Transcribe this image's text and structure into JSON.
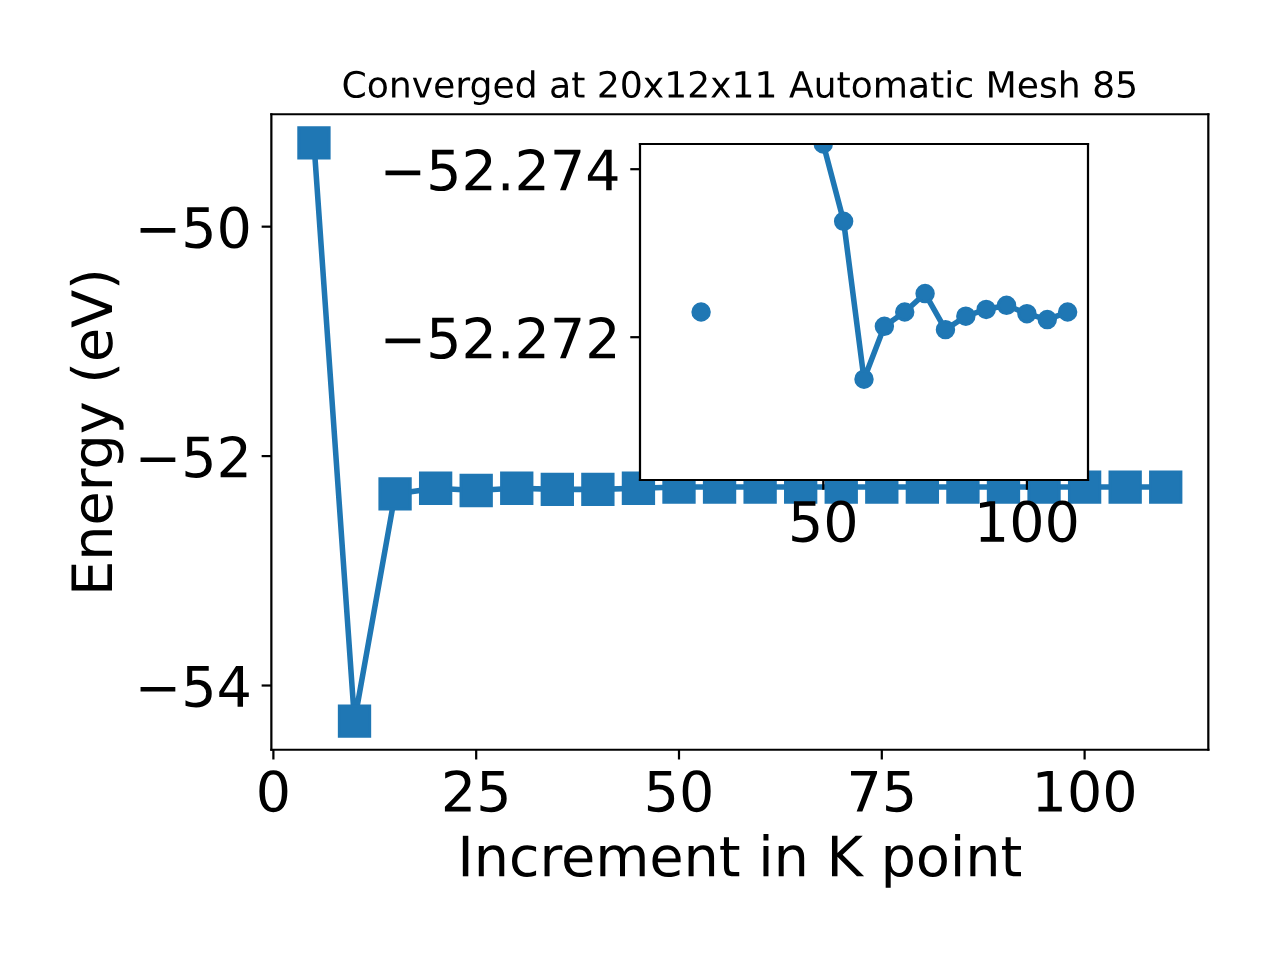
{
  "chart_data": [
    {
      "type": "line",
      "title": "Converged at 20x12x11 Automatic Mesh 85",
      "xlabel": "Increment in K point",
      "ylabel": "Energy (eV)",
      "x": [
        5,
        10,
        15,
        20,
        25,
        30,
        35,
        40,
        45,
        50,
        55,
        60,
        65,
        70,
        75,
        80,
        85,
        90,
        95,
        100,
        105,
        110
      ],
      "series": [
        {
          "color": "#1f77b4",
          "values": [
            -49.27,
            -54.31,
            -52.33,
            -52.28,
            -52.3,
            -52.28,
            -52.29,
            -52.29,
            -52.28,
            -52.27,
            -52.27,
            -52.27,
            -52.27,
            -52.27,
            -52.27,
            -52.27,
            -52.27,
            -52.27,
            -52.27,
            -52.27,
            -52.27,
            -52.27
          ]
        }
      ],
      "xlim": [
        -0.25,
        115.25
      ],
      "ylim": [
        -54.56,
        -49.02
      ],
      "xticks": [
        0,
        25,
        50,
        75,
        100
      ],
      "yticks": [
        -54,
        -52,
        -50
      ],
      "marker": "square",
      "line_style": "solid",
      "grid": false,
      "legend": false
    },
    {
      "type": "line",
      "x": [
        20,
        25,
        30,
        35,
        40,
        45,
        50,
        55,
        60,
        65,
        70,
        75,
        80,
        85,
        90,
        95,
        100,
        105,
        110
      ],
      "series": [
        {
          "color": "#1f77b4",
          "values": [
            -52.2723,
            null,
            null,
            null,
            null,
            null,
            -52.2743,
            -52.27338,
            -52.2715,
            -52.27213,
            -52.2723,
            -52.27252,
            -52.27209,
            -52.27225,
            -52.27233,
            -52.27238,
            -52.27228,
            -52.27221,
            -52.2723
          ]
        }
      ],
      "xlim": [
        5,
        115
      ],
      "ylim": [
        -52.2703,
        -52.2743
      ],
      "xticks": [
        50,
        100
      ],
      "yticks": [
        -52.274,
        -52.272
      ],
      "marker": "circle",
      "line_style": "solid",
      "grid": false,
      "legend": false
    }
  ]
}
